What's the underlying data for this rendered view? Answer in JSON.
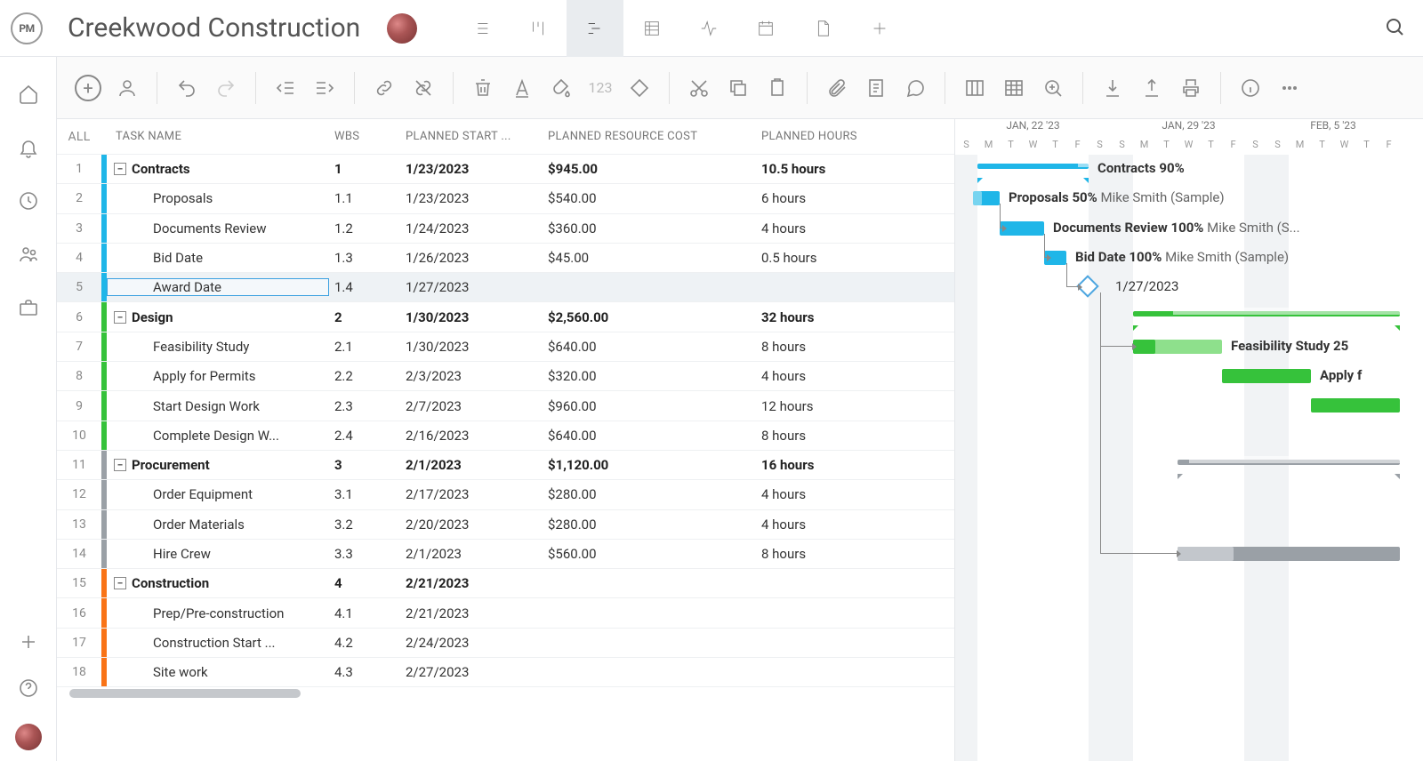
{
  "app": {
    "logo_text": "PM",
    "project_title": "Creekwood Construction"
  },
  "columns": {
    "all": "ALL",
    "task": "TASK NAME",
    "wbs": "WBS",
    "start": "PLANNED START ...",
    "cost": "PLANNED RESOURCE COST",
    "hours": "PLANNED HOURS"
  },
  "colors": {
    "contracts": "#1fb6e8",
    "design": "#36c23b",
    "procurement": "#9aa0a6",
    "construction": "#f97316",
    "gantt_grey": "#9aa0a6",
    "gantt_green_light": "#8ee08c"
  },
  "tasks": [
    {
      "n": 1,
      "name": "Contracts",
      "wbs": "1",
      "start": "1/23/2023",
      "cost": "$945.00",
      "hours": "10.5 hours",
      "group": "contracts",
      "level": 0
    },
    {
      "n": 2,
      "name": "Proposals",
      "wbs": "1.1",
      "start": "1/23/2023",
      "cost": "$540.00",
      "hours": "6 hours",
      "group": "contracts",
      "level": 1
    },
    {
      "n": 3,
      "name": "Documents Review",
      "wbs": "1.2",
      "start": "1/24/2023",
      "cost": "$360.00",
      "hours": "4 hours",
      "group": "contracts",
      "level": 1
    },
    {
      "n": 4,
      "name": "Bid Date",
      "wbs": "1.3",
      "start": "1/26/2023",
      "cost": "$45.00",
      "hours": "0.5 hours",
      "group": "contracts",
      "level": 1
    },
    {
      "n": 5,
      "name": "Award Date",
      "wbs": "1.4",
      "start": "1/27/2023",
      "cost": "",
      "hours": "",
      "group": "contracts",
      "level": 1,
      "selected": true
    },
    {
      "n": 6,
      "name": "Design",
      "wbs": "2",
      "start": "1/30/2023",
      "cost": "$2,560.00",
      "hours": "32 hours",
      "group": "design",
      "level": 0
    },
    {
      "n": 7,
      "name": "Feasibility Study",
      "wbs": "2.1",
      "start": "1/30/2023",
      "cost": "$640.00",
      "hours": "8 hours",
      "group": "design",
      "level": 1
    },
    {
      "n": 8,
      "name": "Apply for Permits",
      "wbs": "2.2",
      "start": "2/3/2023",
      "cost": "$320.00",
      "hours": "4 hours",
      "group": "design",
      "level": 1
    },
    {
      "n": 9,
      "name": "Start Design Work",
      "wbs": "2.3",
      "start": "2/7/2023",
      "cost": "$960.00",
      "hours": "12 hours",
      "group": "design",
      "level": 1
    },
    {
      "n": 10,
      "name": "Complete Design W...",
      "wbs": "2.4",
      "start": "2/16/2023",
      "cost": "$640.00",
      "hours": "8 hours",
      "group": "design",
      "level": 1
    },
    {
      "n": 11,
      "name": "Procurement",
      "wbs": "3",
      "start": "2/1/2023",
      "cost": "$1,120.00",
      "hours": "16 hours",
      "group": "procurement",
      "level": 0
    },
    {
      "n": 12,
      "name": "Order Equipment",
      "wbs": "3.1",
      "start": "2/17/2023",
      "cost": "$280.00",
      "hours": "4 hours",
      "group": "procurement",
      "level": 1
    },
    {
      "n": 13,
      "name": "Order Materials",
      "wbs": "3.2",
      "start": "2/20/2023",
      "cost": "$280.00",
      "hours": "4 hours",
      "group": "procurement",
      "level": 1
    },
    {
      "n": 14,
      "name": "Hire Crew",
      "wbs": "3.3",
      "start": "2/1/2023",
      "cost": "$560.00",
      "hours": "8 hours",
      "group": "procurement",
      "level": 1
    },
    {
      "n": 15,
      "name": "Construction",
      "wbs": "4",
      "start": "2/21/2023",
      "cost": "",
      "hours": "",
      "group": "construction",
      "level": 0
    },
    {
      "n": 16,
      "name": "Prep/Pre-construction",
      "wbs": "4.1",
      "start": "2/21/2023",
      "cost": "",
      "hours": "",
      "group": "construction",
      "level": 1
    },
    {
      "n": 17,
      "name": "Construction Start ...",
      "wbs": "4.2",
      "start": "2/24/2023",
      "cost": "",
      "hours": "",
      "group": "construction",
      "level": 1
    },
    {
      "n": 18,
      "name": "Site work",
      "wbs": "4.3",
      "start": "2/27/2023",
      "cost": "",
      "hours": "",
      "group": "construction",
      "level": 1
    }
  ],
  "gantt": {
    "day_width": 25,
    "start_day_index": 0,
    "week_labels": [
      {
        "label": "JAN, 22 '23",
        "span": 7
      },
      {
        "label": "JAN, 29 '23",
        "span": 7
      },
      {
        "label": "FEB, 5 '23",
        "span": 6
      }
    ],
    "day_letters": [
      "S",
      "M",
      "T",
      "W",
      "T",
      "F",
      "S",
      "S",
      "M",
      "T",
      "W",
      "T",
      "F",
      "S",
      "S",
      "M",
      "T",
      "W",
      "T",
      "F"
    ],
    "weekend_cols": [
      0,
      6,
      7,
      13,
      14
    ],
    "rows": [
      {
        "type": "summary",
        "start": 1,
        "len": 5,
        "color": "#1fb6e8",
        "progress": 0.9,
        "label_b": "Contracts",
        "label_pct": "90%",
        "label_tail": ""
      },
      {
        "type": "bar",
        "start": 1,
        "len": 1,
        "color": "#1fb6e8",
        "overlay_start": 0.8,
        "overlay_len": 0.4,
        "overlay_color": "#77d4f0",
        "label_b": "Proposals",
        "label_pct": "50%",
        "label_tail": "Mike Smith (Sample)"
      },
      {
        "type": "bar",
        "start": 2,
        "len": 2,
        "color": "#1fb6e8",
        "label_b": "Documents Review",
        "label_pct": "100%",
        "label_tail": "Mike Smith (S..."
      },
      {
        "type": "bar",
        "start": 4,
        "len": 1,
        "color": "#1fb6e8",
        "label_b": "Bid Date",
        "label_pct": "100%",
        "label_tail": "Mike Smith (Sample)"
      },
      {
        "type": "milestone",
        "start": 5.6,
        "label_b": "",
        "label_pct": "",
        "label_tail": "1/27/2023"
      },
      {
        "type": "summary",
        "start": 8,
        "len": 12,
        "color": "#36c23b",
        "progress": 0.15,
        "label_b": "",
        "label_pct": "",
        "label_tail": ""
      },
      {
        "type": "bar",
        "start": 8,
        "len": 4,
        "color": "#8ee08c",
        "overlay_start": 8,
        "overlay_len": 1,
        "overlay_color": "#36c23b",
        "label_b": "Feasibility Study",
        "label_pct": "25",
        "label_tail": ""
      },
      {
        "type": "bar",
        "start": 12,
        "len": 4,
        "color": "#36c23b",
        "label_b": "Apply f",
        "label_pct": "",
        "label_tail": ""
      },
      {
        "type": "bar",
        "start": 16,
        "len": 4,
        "color": "#36c23b",
        "label_b": "",
        "label_pct": "",
        "label_tail": ""
      },
      {
        "type": "none"
      },
      {
        "type": "summary",
        "start": 10,
        "len": 10,
        "color": "#9aa0a6",
        "progress": 0.05,
        "label_b": "",
        "label_pct": "",
        "label_tail": ""
      },
      {
        "type": "none"
      },
      {
        "type": "none"
      },
      {
        "type": "bar",
        "start": 10,
        "len": 10,
        "color": "#9aa0a6",
        "overlay_start": 10,
        "overlay_len": 2.5,
        "overlay_color": "#c3c7cc",
        "label_b": "",
        "label_pct": "",
        "label_tail": ""
      },
      {
        "type": "none"
      },
      {
        "type": "none"
      },
      {
        "type": "none"
      },
      {
        "type": "none"
      }
    ]
  },
  "toolbar_num": "123"
}
